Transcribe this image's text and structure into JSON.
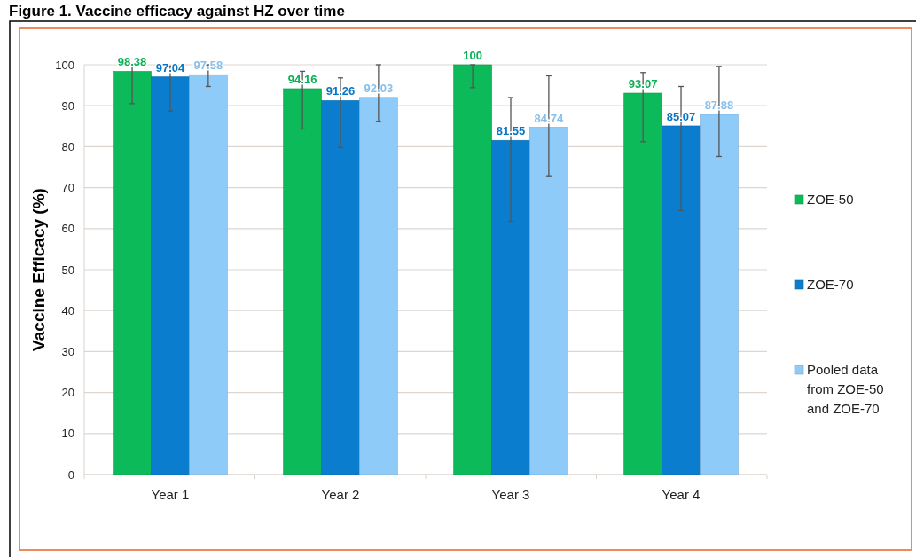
{
  "chart_data": {
    "type": "bar",
    "title": "Figure 1. Vaccine efficacy against HZ over time",
    "ylabel": "Vaccine Efficacy (%)",
    "categories": [
      "Year 1",
      "Year 2",
      "Year 3",
      "Year 4"
    ],
    "series": [
      {
        "name": "ZOE-50",
        "color": "#0cba5a",
        "values": [
          98.38,
          94.16,
          100,
          93.07
        ],
        "errors": [
          [
            90.5,
            100
          ],
          [
            84.3,
            98.4
          ],
          [
            94.4,
            100
          ],
          [
            81.2,
            98.1
          ]
        ]
      },
      {
        "name": "ZOE-70",
        "color": "#0a7dcf",
        "values": [
          97.04,
          91.26,
          81.55,
          85.07
        ],
        "errors": [
          [
            88.7,
            99.7
          ],
          [
            79.8,
            96.8
          ],
          [
            61.8,
            92
          ],
          [
            64.4,
            94.7
          ]
        ]
      },
      {
        "name": "Pooled data from ZOE-50 and ZOE-70",
        "color": "#8fcbf8",
        "values": [
          97.58,
          92.03,
          84.74,
          87.88
        ],
        "errors": [
          [
            94.7,
            100
          ],
          [
            86.2,
            100
          ],
          [
            72.9,
            97.3
          ],
          [
            77.6,
            99.6
          ]
        ]
      }
    ],
    "ylim": [
      0,
      100
    ],
    "yticks": [
      0,
      10,
      20,
      30,
      40,
      50,
      60,
      70,
      80,
      90,
      100
    ],
    "grid": "y",
    "legend": "right",
    "data_labels": true
  }
}
